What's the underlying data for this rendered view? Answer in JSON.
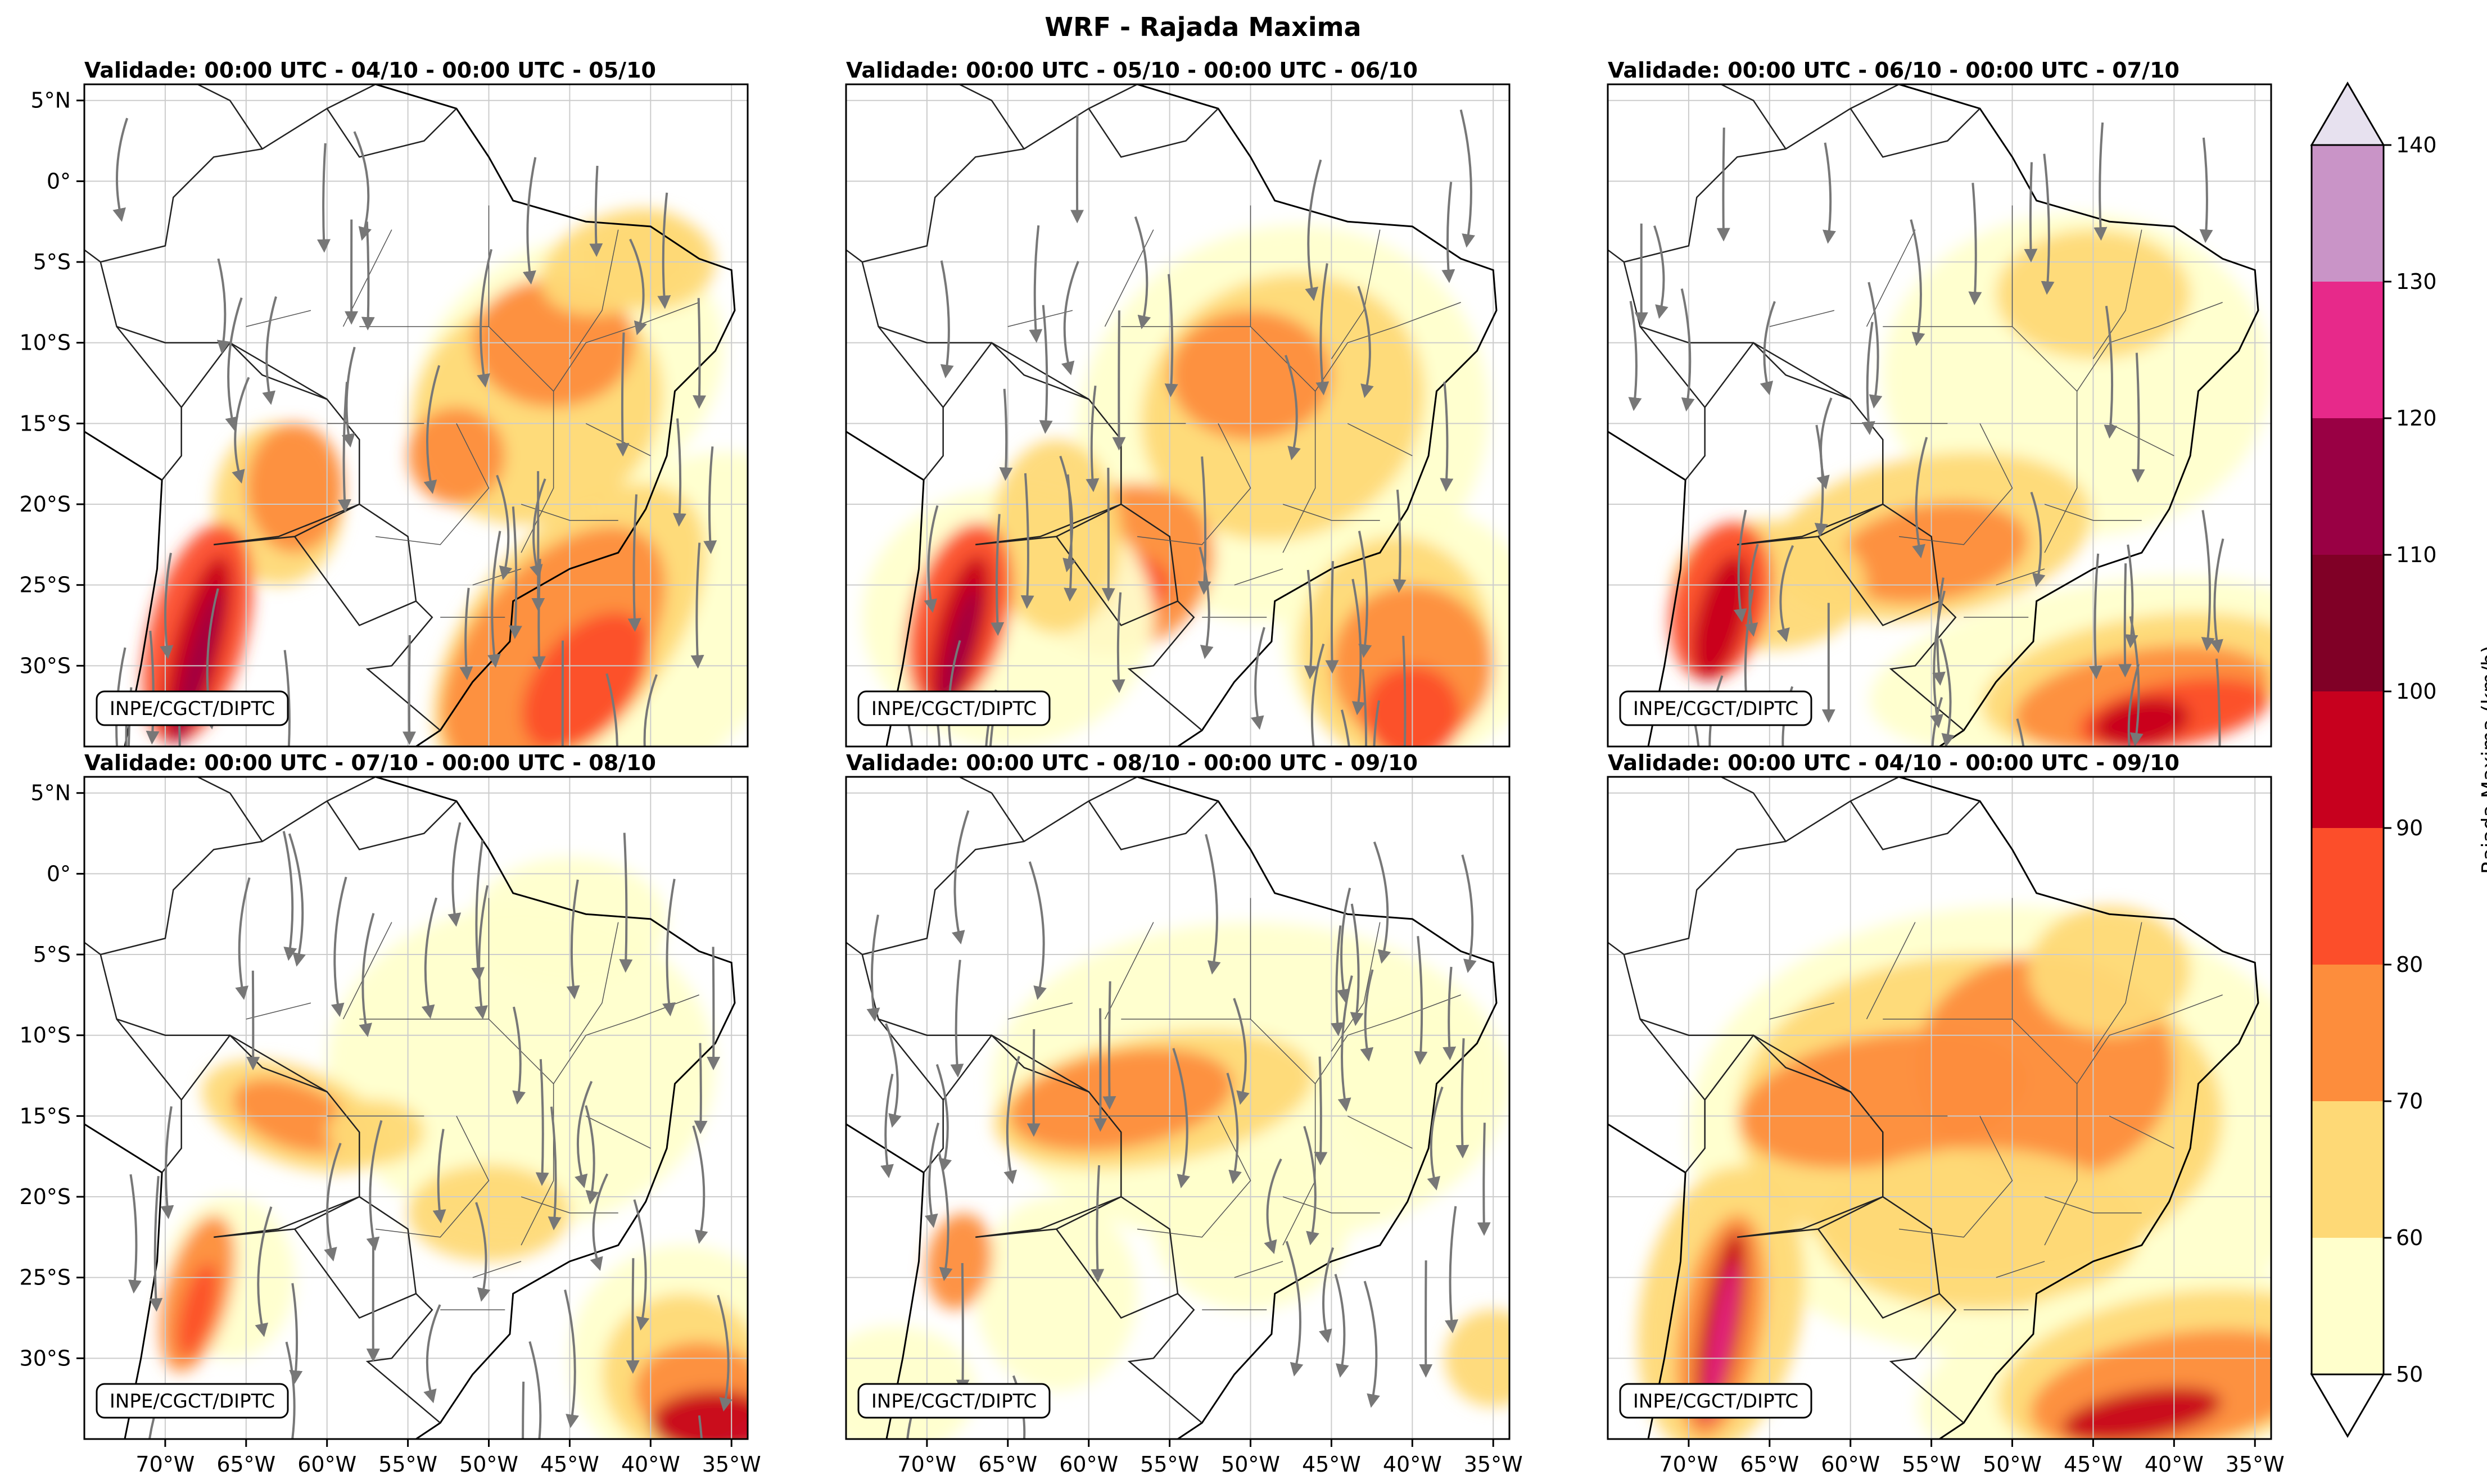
{
  "figure": {
    "title": "WRF - Rajada Maxima"
  },
  "panels": [
    {
      "title": "Validade: 00:00 UTC - 04/10 - 00:00 UTC - 05/10",
      "credit": "INPE/CGCT/DIPTC"
    },
    {
      "title": "Validade: 00:00 UTC - 05/10 - 00:00 UTC - 06/10",
      "credit": "INPE/CGCT/DIPTC"
    },
    {
      "title": "Validade: 00:00 UTC - 06/10 - 00:00 UTC - 07/10",
      "credit": "INPE/CGCT/DIPTC"
    },
    {
      "title": "Validade: 00:00 UTC - 07/10 - 00:00 UTC - 08/10",
      "credit": "INPE/CGCT/DIPTC"
    },
    {
      "title": "Validade: 00:00 UTC - 08/10 - 00:00 UTC - 09/10",
      "credit": "INPE/CGCT/DIPTC"
    },
    {
      "title": "Validade: 00:00 UTC - 04/10 - 00:00 UTC - 09/10",
      "credit": "INPE/CGCT/DIPTC"
    }
  ],
  "axes": {
    "lat_ticks": [
      "5°N",
      "0°",
      "5°S",
      "10°S",
      "15°S",
      "20°S",
      "25°S",
      "30°S"
    ],
    "lon_ticks": [
      "70°W",
      "65°W",
      "60°W",
      "55°W",
      "50°W",
      "45°W",
      "40°W",
      "35°W"
    ]
  },
  "colorbar": {
    "label": "Rajada Maxima (km/h)",
    "ticks": [
      "50",
      "60",
      "70",
      "80",
      "90",
      "100",
      "110",
      "120",
      "130",
      "140"
    ],
    "colors": [
      "#ffffcc",
      "#fed976",
      "#fd8d3c",
      "#fc4e2a",
      "#c7001e",
      "#800026",
      "#990044",
      "#e7298a",
      "#c994c7",
      "#e7e1ef"
    ]
  },
  "legend_colors": {
    "streamline": "#777777",
    "coast": "#000000",
    "borders": "#555555"
  }
}
